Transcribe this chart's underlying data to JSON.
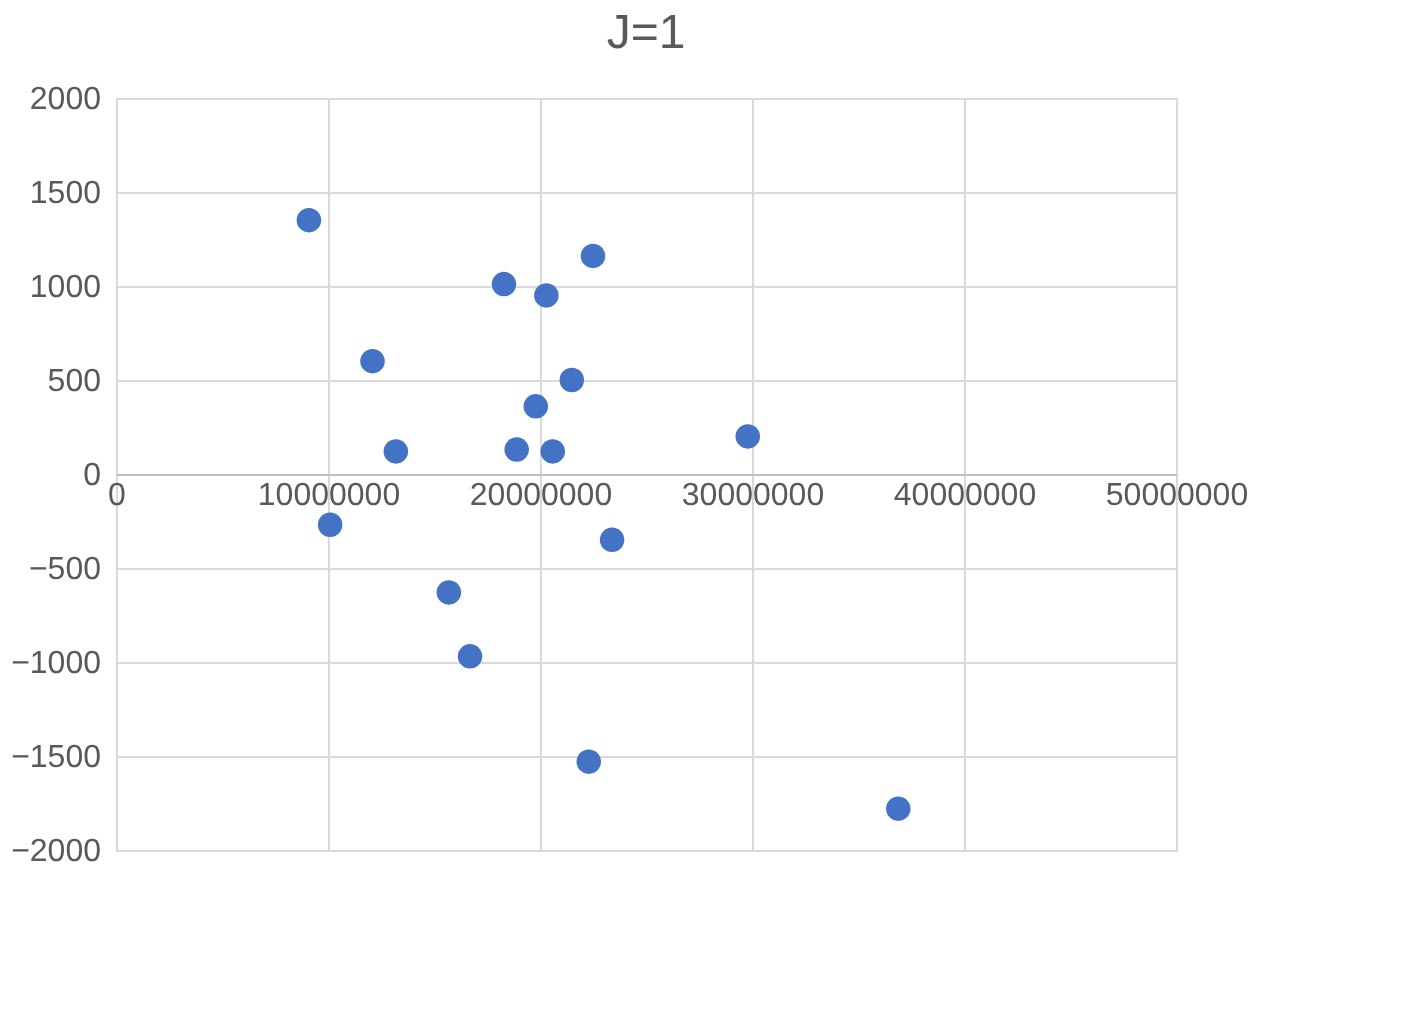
{
  "chart_data": {
    "type": "scatter",
    "title": "J=1",
    "x": [
      9100000,
      10100000,
      12100000,
      13200000,
      18300000,
      20300000,
      22500000,
      21500000,
      19800000,
      18900000,
      20600000,
      23400000,
      29800000,
      15700000,
      16700000,
      22300000,
      36900000
    ],
    "series": [
      {
        "color": "#4472c4",
        "values": [
          1350,
          -270,
          600,
          120,
          1010,
          950,
          1160,
          500,
          360,
          130,
          120,
          -350,
          200,
          -630,
          -970,
          -1530,
          -1780
        ]
      }
    ],
    "xlim": [
      0,
      50000000
    ],
    "xticks": [
      0,
      10000000,
      20000000,
      30000000,
      40000000,
      50000000
    ],
    "ylim": [
      -2000,
      2000
    ],
    "yticks": [
      -2000,
      -1500,
      -1000,
      -500,
      0,
      500,
      1000,
      1500,
      2000
    ],
    "grid": true,
    "marker": "circle"
  }
}
